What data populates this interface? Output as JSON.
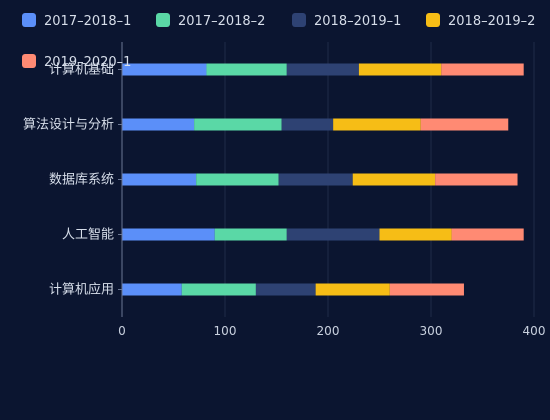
{
  "chart_data": {
    "type": "bar",
    "orientation": "horizontal",
    "stacked": true,
    "categories": [
      "计算机应用",
      "人工智能",
      "数据库系统",
      "算法设计与分析",
      "计算机基础"
    ],
    "series": [
      {
        "name": "2017–2018–1",
        "color": "#5b8ff9",
        "values": [
          58,
          90,
          72,
          70,
          82
        ]
      },
      {
        "name": "2017–2018–2",
        "color": "#5ad8a6",
        "values": [
          72,
          70,
          80,
          85,
          78
        ]
      },
      {
        "name": "2018–2019–1",
        "color": "#2e4273",
        "values": [
          58,
          90,
          72,
          50,
          70
        ]
      },
      {
        "name": "2018–2019–2",
        "color": "#f6bd16",
        "values": [
          72,
          70,
          80,
          85,
          80
        ]
      },
      {
        "name": "2019–2020–1",
        "color": "#ff8a73",
        "values": [
          72,
          70,
          80,
          85,
          80
        ]
      }
    ],
    "xlim": [
      0,
      400
    ],
    "xticks": [
      "0",
      "100",
      "200",
      "300",
      "400"
    ],
    "grid": true,
    "legend_position": "top"
  }
}
